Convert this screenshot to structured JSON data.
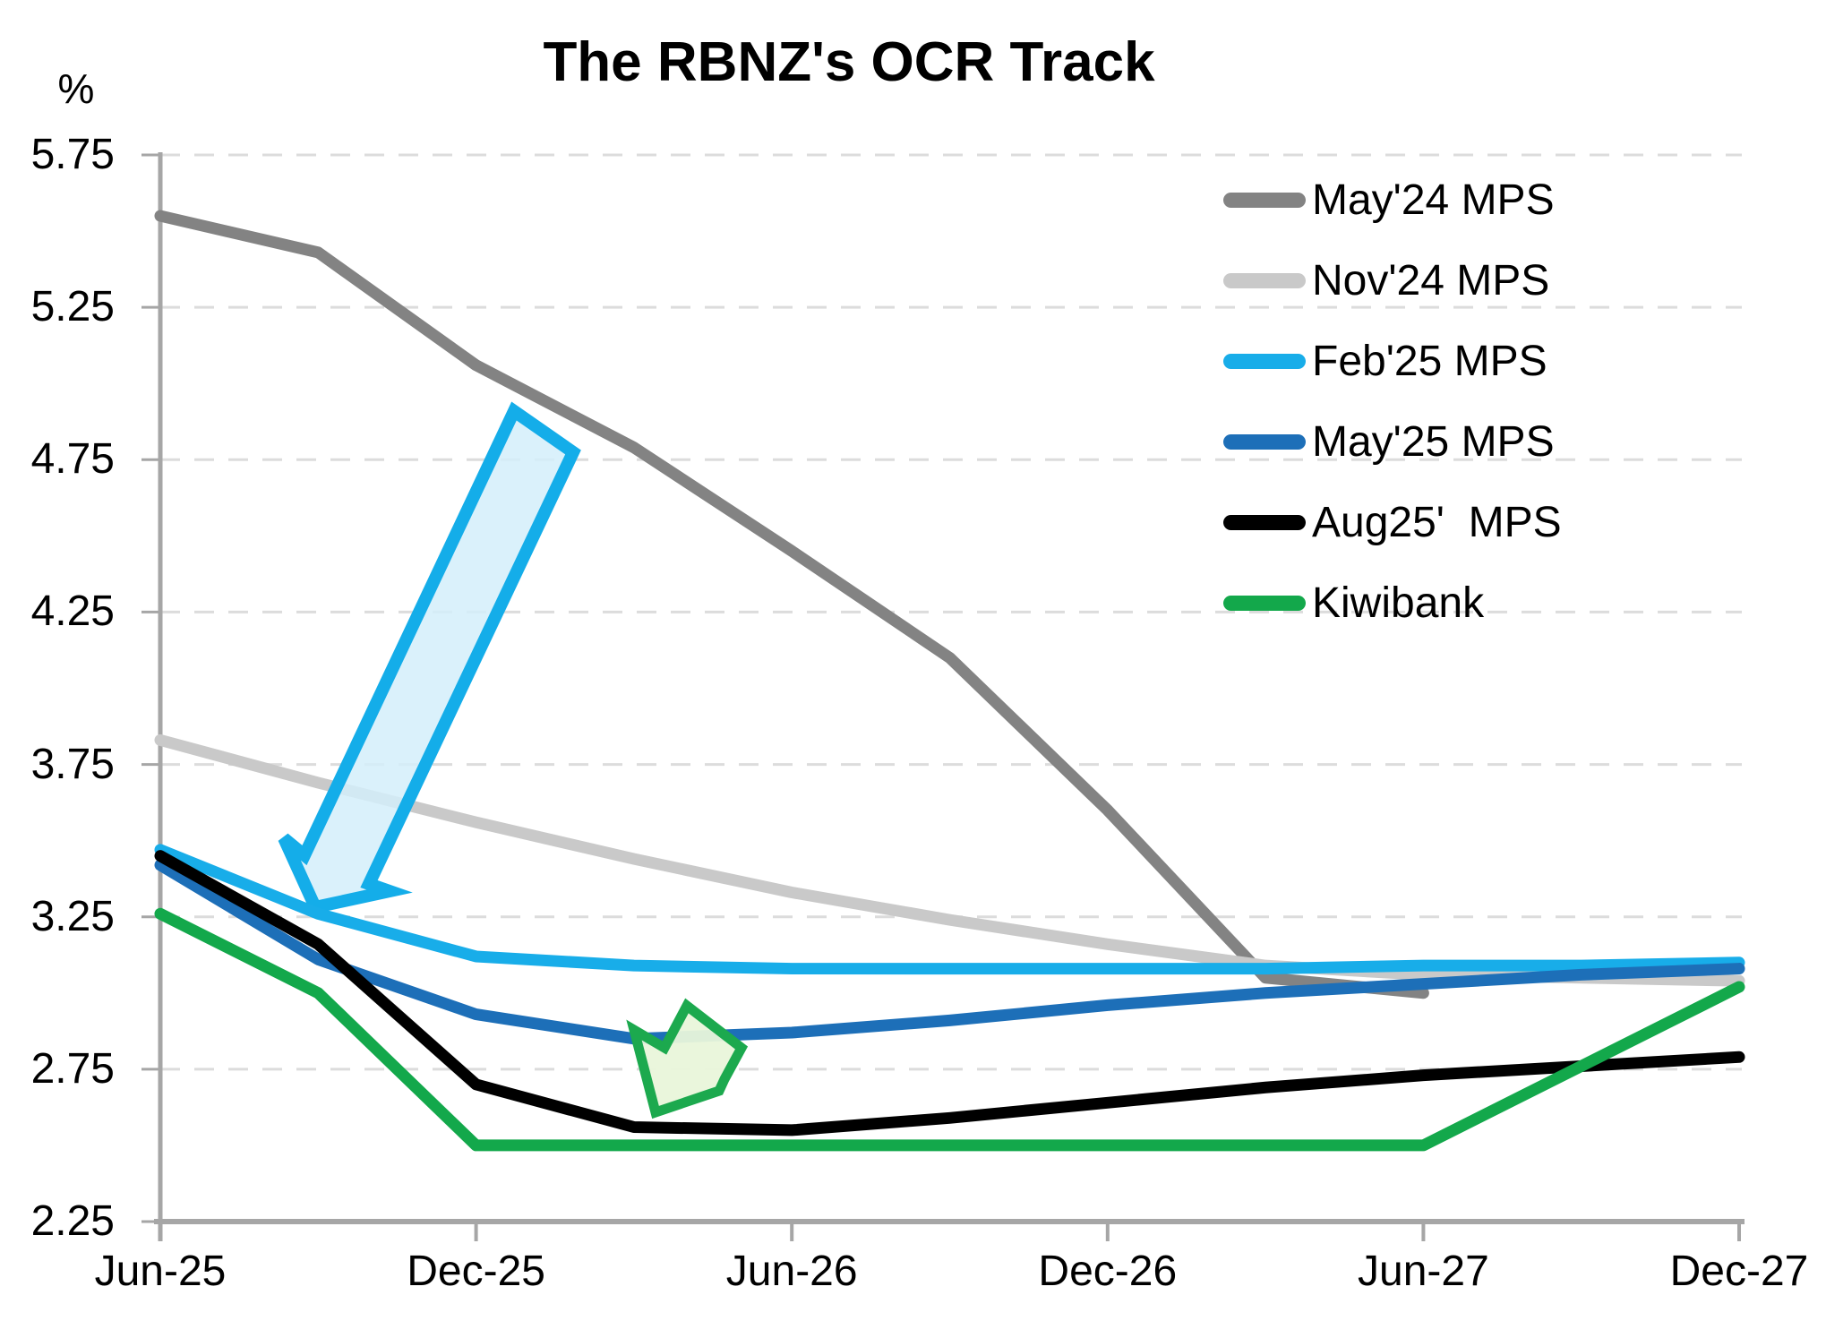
{
  "title": "The RBNZ's OCR Track",
  "y_axis": {
    "unit_label": "%",
    "tick_labels": [
      "5.75",
      "5.25",
      "4.75",
      "4.25",
      "3.75",
      "3.25",
      "2.75",
      "2.25"
    ]
  },
  "x_axis": {
    "tick_labels": [
      "Jun-25",
      "Dec-25",
      "Jun-26",
      "Dec-26",
      "Jun-27",
      "Dec-27"
    ]
  },
  "legend": {
    "entries": [
      "May'24 MPS",
      "Nov'24 MPS",
      "Feb'25 MPS",
      "May'25 MPS",
      "Aug25'  MPS",
      "Kiwibank"
    ]
  },
  "chart_data": {
    "type": "line",
    "title": "The RBNZ's OCR Track",
    "xlabel": "",
    "ylabel": "%",
    "ylim": [
      2.25,
      5.75
    ],
    "y_tick_step": 0.5,
    "grid": "horizontal-dashed",
    "legend_position": "upper-right",
    "categories": [
      "Jun-25",
      "Sep-25",
      "Dec-25",
      "Mar-26",
      "Jun-26",
      "Sep-26",
      "Dec-26",
      "Mar-27",
      "Jun-27",
      "Sep-27",
      "Dec-27"
    ],
    "x_axis_label_indices": [
      0,
      2,
      4,
      6,
      8,
      10
    ],
    "series": [
      {
        "name": "May'24 MPS",
        "color": "#838383",
        "values": [
          5.55,
          5.43,
          5.06,
          4.79,
          4.45,
          4.1,
          3.6,
          3.05,
          3.0,
          null,
          null
        ]
      },
      {
        "name": "Nov'24 MPS",
        "color": "#c9c9c9",
        "values": [
          3.83,
          3.69,
          3.56,
          3.44,
          3.33,
          3.24,
          3.16,
          3.09,
          3.06,
          3.05,
          3.04
        ]
      },
      {
        "name": "Feb'25 MPS",
        "color": "#18ade9",
        "values": [
          3.47,
          3.26,
          3.12,
          3.09,
          3.08,
          3.08,
          3.08,
          3.08,
          3.09,
          3.09,
          3.1
        ]
      },
      {
        "name": "May'25 MPS",
        "color": "#1d6fb8",
        "values": [
          3.42,
          3.11,
          2.93,
          2.85,
          2.87,
          2.91,
          2.96,
          3.0,
          3.03,
          3.06,
          3.08
        ]
      },
      {
        "name": "Aug25'  MPS",
        "color": "#000000",
        "values": [
          3.45,
          3.16,
          2.7,
          2.56,
          2.55,
          2.59,
          2.64,
          2.69,
          2.73,
          2.76,
          2.79
        ]
      },
      {
        "name": "Kiwibank",
        "color": "#13a84b",
        "values": [
          3.26,
          3.0,
          2.5,
          2.5,
          2.5,
          2.5,
          2.5,
          2.5,
          2.5,
          2.76,
          3.02
        ]
      }
    ],
    "annotations": [
      {
        "name": "large-downshift-arrow",
        "shape": "block-arrow",
        "points": [
          [
            574,
            459
          ],
          [
            340,
            955
          ],
          [
            317,
            936
          ],
          [
            352,
            1013
          ],
          [
            435,
            995
          ],
          [
            412,
            987
          ],
          [
            640,
            505
          ]
        ],
        "fill": "#d3eefa",
        "fill_opacity": 0.85,
        "stroke": "#14ade9",
        "stroke_width": 14,
        "draw_before_series": 2
      },
      {
        "name": "small-downshift-arrow",
        "shape": "block-arrow",
        "points": [
          [
            767,
            1123
          ],
          [
            742,
            1170
          ],
          [
            708,
            1150
          ],
          [
            732,
            1242
          ],
          [
            803,
            1218
          ],
          [
            809,
            1205
          ],
          [
            828,
            1170
          ]
        ],
        "fill": "#e9f5da",
        "fill_opacity": 0.95,
        "stroke": "#1ca94e",
        "stroke_width": 11,
        "draw_before_series": 4
      }
    ],
    "colors": {
      "grid": "#dcdcdc",
      "axis": "#a6a6a6",
      "text": "#000000",
      "background": "#ffffff"
    },
    "line_width": 13
  }
}
